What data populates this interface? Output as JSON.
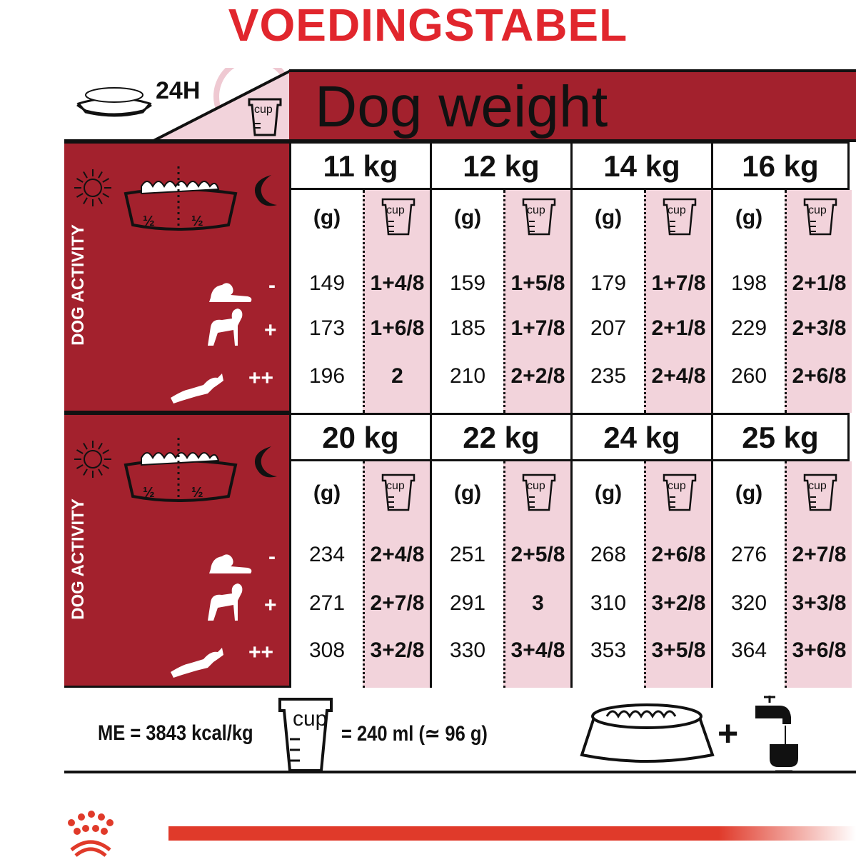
{
  "title": "VOEDINGSTABEL",
  "header": {
    "duration": "24H",
    "cup_label": "cup",
    "dog_weight": "Dog weight"
  },
  "side": {
    "activity_label": "DOG ACTIVITY",
    "half": "½",
    "activity_levels": [
      "-",
      "+",
      "++"
    ]
  },
  "units": {
    "grams": "(g)",
    "cup": "cup"
  },
  "blocks": [
    {
      "columns": [
        {
          "weight": "11 kg",
          "grams": [
            "149",
            "173",
            "196"
          ],
          "cups": [
            "1+4/8",
            "1+6/8",
            "2"
          ]
        },
        {
          "weight": "12 kg",
          "grams": [
            "159",
            "185",
            "210"
          ],
          "cups": [
            "1+5/8",
            "1+7/8",
            "2+2/8"
          ]
        },
        {
          "weight": "14 kg",
          "grams": [
            "179",
            "207",
            "235"
          ],
          "cups": [
            "1+7/8",
            "2+1/8",
            "2+4/8"
          ]
        },
        {
          "weight": "16 kg",
          "grams": [
            "198",
            "229",
            "260"
          ],
          "cups": [
            "2+1/8",
            "2+3/8",
            "2+6/8"
          ]
        }
      ]
    },
    {
      "columns": [
        {
          "weight": "20 kg",
          "grams": [
            "234",
            "271",
            "308"
          ],
          "cups": [
            "2+4/8",
            "2+7/8",
            "3+2/8"
          ]
        },
        {
          "weight": "22 kg",
          "grams": [
            "251",
            "291",
            "330"
          ],
          "cups": [
            "2+5/8",
            "3",
            "3+4/8"
          ]
        },
        {
          "weight": "24 kg",
          "grams": [
            "268",
            "310",
            "353"
          ],
          "cups": [
            "2+6/8",
            "3+2/8",
            "3+5/8"
          ]
        },
        {
          "weight": "25 kg",
          "grams": [
            "276",
            "320",
            "364"
          ],
          "cups": [
            "2+7/8",
            "3+3/8",
            "3+6/8"
          ]
        }
      ]
    }
  ],
  "footer": {
    "energy": "ME = 3843 kcal/kg",
    "cup_label": "cup",
    "cup_equiv": "= 240 ml (≃ 96 g)",
    "plus": "+"
  },
  "colors": {
    "title_red": "#e1262d",
    "dark_red": "#a3212d",
    "pink": "#f2d3db",
    "brand_red": "#e03a2a"
  }
}
